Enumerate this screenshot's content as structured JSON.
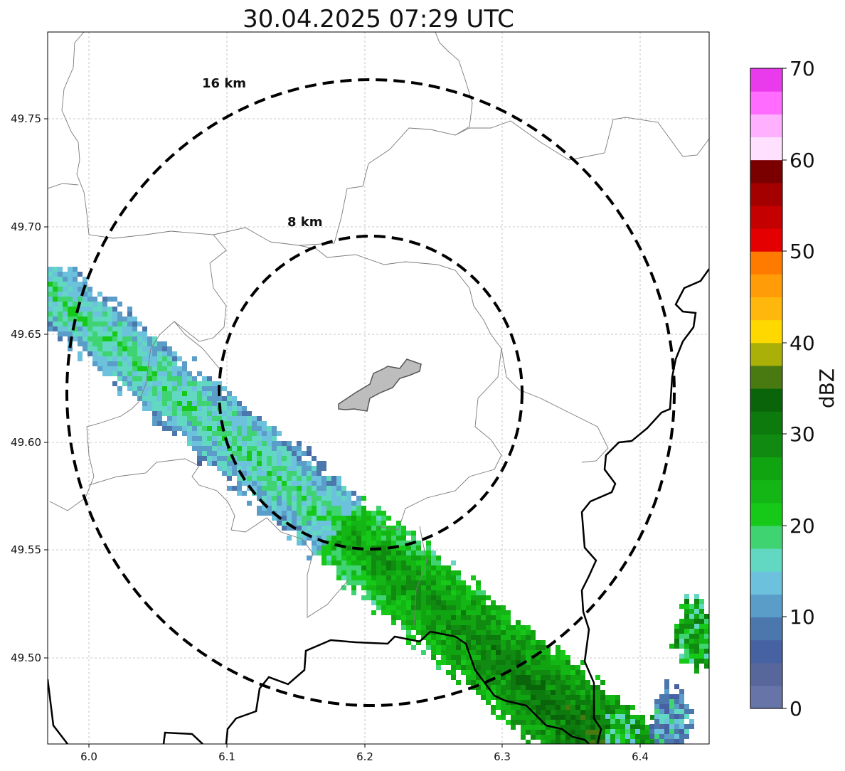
{
  "title": "30.04.2025 07:29 UTC",
  "map": {
    "x_ticks": [
      "6.0",
      "6.1",
      "6.2",
      "6.3",
      "6.4"
    ],
    "y_ticks": [
      "49.75",
      "49.70",
      "49.65",
      "49.60",
      "49.55",
      "49.50"
    ],
    "x_range": [
      5.97,
      6.45
    ],
    "y_range": [
      49.46,
      49.79
    ],
    "grid": true,
    "range_rings": [
      {
        "label": "16 km",
        "radius_km": 16
      },
      {
        "label": "8 km",
        "radius_km": 8
      }
    ],
    "center": {
      "lon": 6.203,
      "lat": 49.623
    },
    "colors": {
      "ring": "#000000",
      "grid": "#b0b0b0",
      "border_thin": "#808080",
      "border_thick": "#000000",
      "city_fill": "#bdbdbd"
    }
  },
  "colorbar": {
    "label": "dBZ",
    "ticks": [
      "0",
      "10",
      "20",
      "30",
      "40",
      "50",
      "60",
      "70"
    ],
    "range": [
      0,
      70
    ],
    "colors": [
      "#6674a8",
      "#57679c",
      "#4762a3",
      "#4c77ad",
      "#5a9dc8",
      "#6cc2dc",
      "#62d7c1",
      "#3fd471",
      "#16c919",
      "#14b615",
      "#11a411",
      "#118a11",
      "#0d7a0d",
      "#0a640a",
      "#487a11",
      "#aab007",
      "#ffd800",
      "#ffb70d",
      "#ff9c07",
      "#ff7b00",
      "#e40000",
      "#c40000",
      "#a40000",
      "#7a0000",
      "#ffe1ff",
      "#ffb1ff",
      "#ff6cff",
      "#e93aeb"
    ]
  }
}
